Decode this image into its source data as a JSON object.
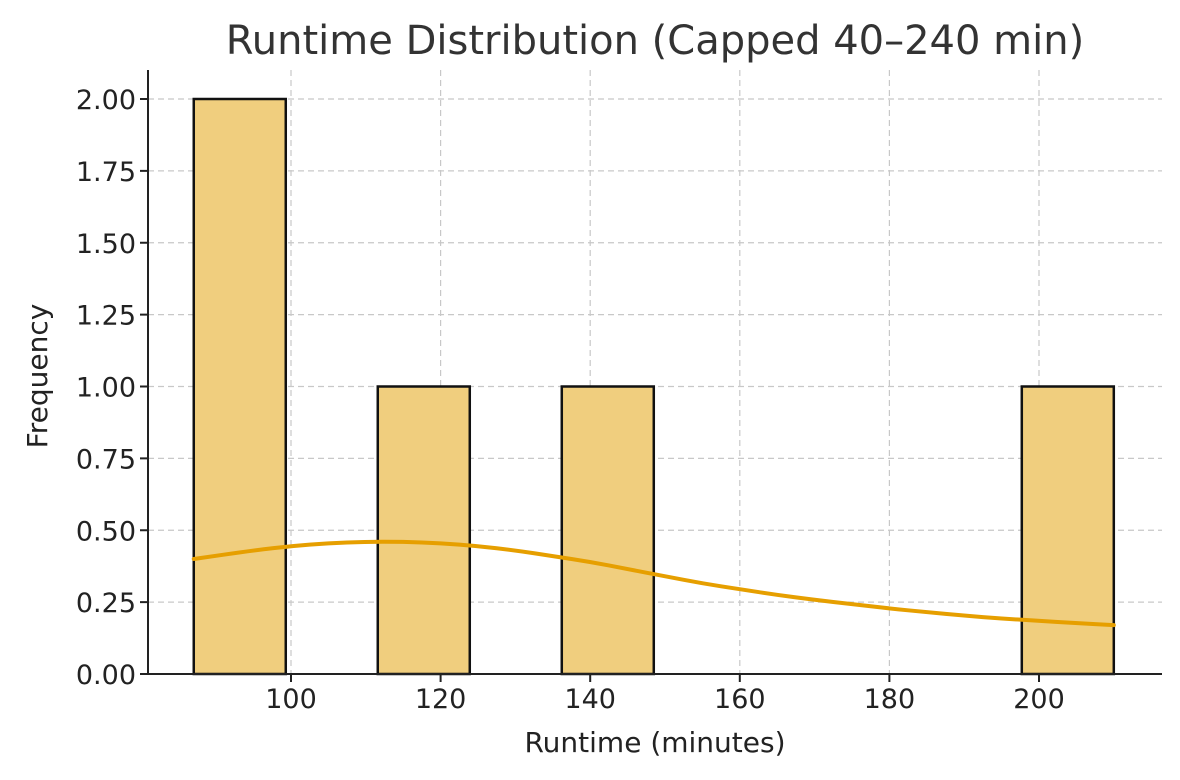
{
  "chart_data": {
    "type": "bar",
    "title": "Runtime Distribution (Capped 40–240 min)",
    "xlabel": "Runtime (minutes)",
    "ylabel": "Frequency",
    "xlim": [
      81.8,
      216.2
    ],
    "ylim": [
      0,
      2.1
    ],
    "xticks": [
      100,
      120,
      140,
      160,
      180,
      200
    ],
    "yticks": [
      0,
      0.25,
      0.5,
      0.75,
      1.0,
      1.25,
      1.5,
      1.75,
      2.0
    ],
    "ytick_labels": [
      "0.00",
      "0.25",
      "0.50",
      "0.75",
      "1.00",
      "1.25",
      "1.50",
      "1.75",
      "2.00"
    ],
    "bins": [
      {
        "x0": 87,
        "x1": 99.3,
        "count": 2
      },
      {
        "x0": 99.3,
        "x1": 111.6,
        "count": 0
      },
      {
        "x0": 111.6,
        "x1": 123.9,
        "count": 1
      },
      {
        "x0": 123.9,
        "x1": 136.2,
        "count": 0
      },
      {
        "x0": 136.2,
        "x1": 148.5,
        "count": 1
      },
      {
        "x0": 148.5,
        "x1": 160.8,
        "count": 0
      },
      {
        "x0": 160.8,
        "x1": 173.1,
        "count": 0
      },
      {
        "x0": 173.1,
        "x1": 185.4,
        "count": 0
      },
      {
        "x0": 185.4,
        "x1": 197.7,
        "count": 0
      },
      {
        "x0": 197.7,
        "x1": 210,
        "count": 1
      }
    ],
    "kde": {
      "x": [
        87,
        95,
        100,
        105,
        110,
        115,
        120,
        125,
        130,
        135,
        140,
        145,
        150,
        155,
        160,
        165,
        170,
        175,
        180,
        185,
        190,
        195,
        200,
        205,
        210
      ],
      "y": [
        0.4,
        0.43,
        0.445,
        0.455,
        0.46,
        0.46,
        0.455,
        0.445,
        0.43,
        0.41,
        0.39,
        0.365,
        0.34,
        0.315,
        0.295,
        0.275,
        0.258,
        0.243,
        0.228,
        0.215,
        0.203,
        0.193,
        0.185,
        0.177,
        0.17
      ]
    },
    "grid": true,
    "bar_color": "#f0ce7e",
    "line_color": "#e69f00"
  }
}
